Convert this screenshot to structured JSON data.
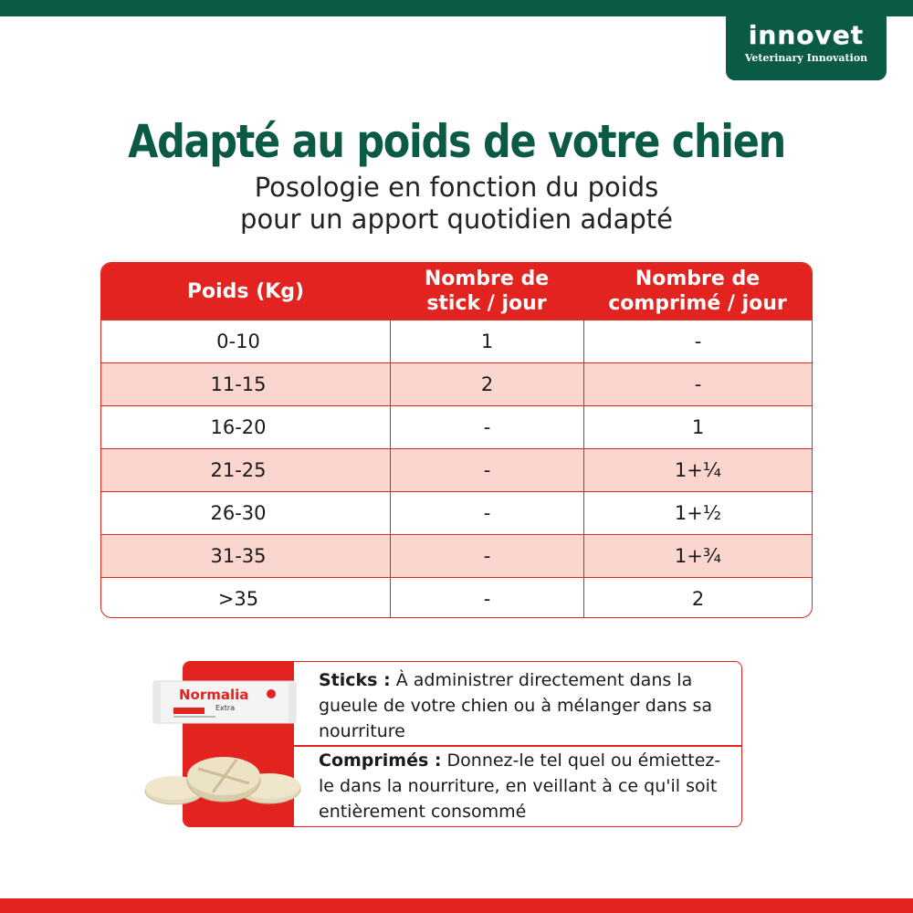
{
  "brand": {
    "name": "innovet",
    "tagline": "Veterinary Innovation",
    "primary_color": "#0b5a46",
    "accent_color": "#e3231f"
  },
  "header": {
    "title": "Adapté au poids de votre chien",
    "subtitle_line1": "Posologie en fonction du poids",
    "subtitle_line2": "pour un apport quotidien adapté"
  },
  "table": {
    "columns": [
      {
        "line1": "Poids (Kg)",
        "line2": ""
      },
      {
        "line1": "Nombre de",
        "line2": "stick / jour"
      },
      {
        "line1": "Nombre de",
        "line2": "comprimé / jour"
      }
    ],
    "rows": [
      [
        "0-10",
        "1",
        "-"
      ],
      [
        "11-15",
        "2",
        "-"
      ],
      [
        "16-20",
        "-",
        "1"
      ],
      [
        "21-25",
        "-",
        "1+¼"
      ],
      [
        "26-30",
        "-",
        "1+½"
      ],
      [
        "31-35",
        "-",
        "1+¾"
      ],
      [
        ">35",
        "-",
        "2"
      ]
    ],
    "alt_row_color": "#fbd6cf"
  },
  "usage": {
    "product_name": "Normalia",
    "product_variant": "Extra",
    "sticks_label": "Sticks :",
    "sticks_text": "À administrer directement dans la gueule de votre chien ou à mélanger dans sa nourriture",
    "tablets_label": "Comprimés :",
    "tablets_text": "Donnez-le tel quel ou émiettez-le dans la nourriture, en veillant à ce qu'il soit entièrement consommé"
  }
}
